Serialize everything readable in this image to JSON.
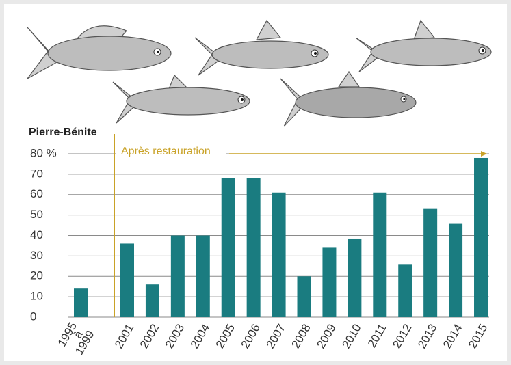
{
  "chart_data": {
    "type": "bar",
    "title": "Pierre-Bénite",
    "annotation": "Après restauration",
    "categories": [
      "1995 à 1999",
      "2001",
      "2002",
      "2003",
      "2004",
      "2005",
      "2006",
      "2007",
      "2008",
      "2009",
      "2010",
      "2011",
      "2012",
      "2013",
      "2014",
      "2015"
    ],
    "values": [
      14,
      36,
      16,
      40,
      40,
      68,
      68,
      61,
      20,
      34,
      38.5,
      61,
      26,
      53,
      46,
      78
    ],
    "color": "#1a7c80",
    "ylim": [
      0,
      80
    ],
    "yticks": [
      0,
      10,
      20,
      30,
      40,
      50,
      60,
      70,
      {
        "value": 80,
        "label": "80 %"
      }
    ],
    "grid": true
  }
}
